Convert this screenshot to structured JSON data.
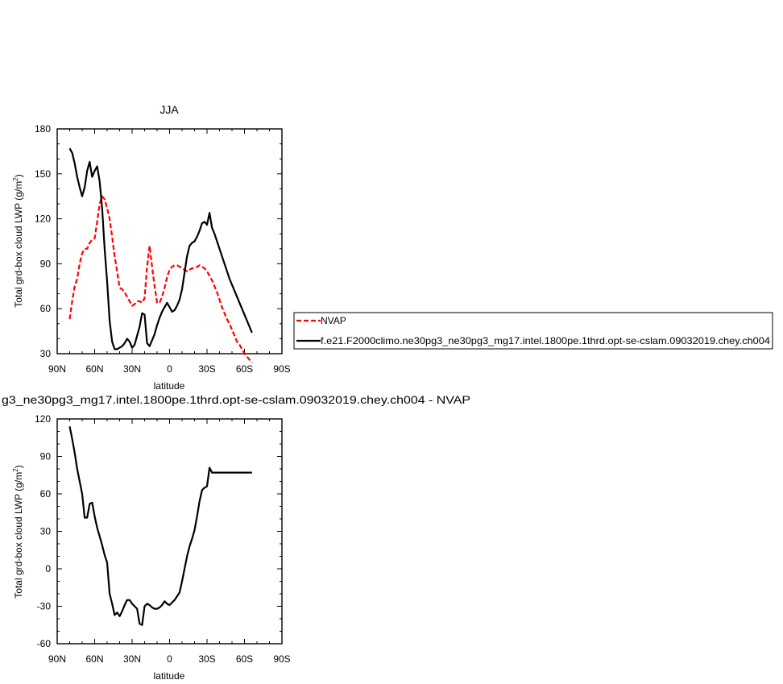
{
  "chart_data": [
    {
      "type": "line",
      "title": "JJA",
      "xlabel": "latitude",
      "ylabel_main": "Total grd-box cloud LWP (g/m",
      "ylabel_sup": "2",
      "ylabel_end": ")",
      "xlim": [
        90,
        -90
      ],
      "ylim": [
        30,
        180
      ],
      "xticks": [
        90,
        60,
        30,
        0,
        -30,
        -60,
        -90
      ],
      "xtick_labels": [
        "90N",
        "60N",
        "30N",
        "0",
        "30S",
        "60S",
        "90S"
      ],
      "yticks": [
        30,
        60,
        90,
        120,
        150,
        180
      ],
      "ytick_labels": [
        "30",
        "60",
        "90",
        "120",
        "150",
        "180"
      ],
      "legend_position": "right of plot",
      "series": [
        {
          "name": "NVAP",
          "color": "#ff0000",
          "dash": "dashed",
          "x": [
            80,
            78,
            76,
            74,
            72,
            70,
            68,
            66,
            64,
            62,
            60,
            58,
            56,
            54,
            52,
            50,
            48,
            46,
            44,
            42,
            40,
            38,
            36,
            34,
            32,
            30,
            28,
            26,
            24,
            22,
            20,
            18,
            16,
            14,
            12,
            10,
            8,
            6,
            4,
            2,
            0,
            -2,
            -4,
            -6,
            -8,
            -10,
            -12,
            -14,
            -16,
            -18,
            -20,
            -22,
            -24,
            -26,
            -28,
            -30,
            -32,
            -34,
            -36,
            -38,
            -40,
            -42,
            -44,
            -46,
            -48,
            -50,
            -52,
            -54,
            -56,
            -58,
            -60,
            -62,
            -64,
            -66
          ],
          "values": [
            53,
            65,
            75,
            80,
            90,
            97,
            100,
            100,
            104,
            106,
            107,
            118,
            130,
            135,
            133,
            127,
            120,
            108,
            95,
            85,
            74,
            73,
            71,
            68,
            65,
            62,
            63,
            65,
            65,
            64,
            67,
            88,
            102,
            88,
            75,
            64,
            64,
            68,
            74,
            81,
            86,
            88,
            89,
            89,
            88,
            87,
            86,
            85,
            86,
            87,
            87,
            88,
            89,
            88,
            87,
            85,
            82,
            79,
            75,
            71,
            66,
            61,
            57,
            53,
            50,
            46,
            42,
            38,
            36,
            33,
            30,
            28,
            26,
            24
          ]
        },
        {
          "name": "f.e21.F2000climo.ne30pg3_ne30pg3_mg17.intel.1800pe.1thrd.opt-se-cslam.09032019.chey.ch004",
          "color": "#000000",
          "dash": "solid",
          "x": [
            80,
            78,
            76,
            74,
            72,
            70,
            68,
            66,
            64,
            62,
            60,
            58,
            56,
            54,
            52,
            50,
            48,
            46,
            44,
            42,
            40,
            38,
            36,
            34,
            32,
            30,
            28,
            26,
            24,
            22,
            20,
            18,
            16,
            14,
            12,
            10,
            8,
            6,
            4,
            2,
            0,
            -2,
            -4,
            -6,
            -8,
            -10,
            -12,
            -14,
            -16,
            -18,
            -20,
            -22,
            -24,
            -26,
            -28,
            -30,
            -32,
            -34,
            -36,
            -38,
            -40,
            -42,
            -44,
            -46,
            -48,
            -50,
            -52,
            -54,
            -56,
            -58,
            -60,
            -62,
            -64,
            -66
          ],
          "values": [
            167,
            164,
            157,
            148,
            141,
            135,
            141,
            152,
            158,
            148,
            152,
            155,
            145,
            127,
            100,
            78,
            52,
            38,
            33,
            33,
            34,
            35,
            37,
            40,
            38,
            34,
            36,
            42,
            48,
            57,
            56,
            37,
            35,
            39,
            43,
            49,
            54,
            58,
            61,
            64,
            61,
            58,
            59,
            62,
            66,
            73,
            84,
            95,
            102,
            104,
            105,
            108,
            112,
            117,
            118,
            116,
            124,
            114,
            110,
            105,
            100,
            95,
            90,
            85,
            80,
            76,
            72,
            68,
            64,
            60,
            56,
            52,
            48,
            44
          ]
        }
      ]
    },
    {
      "type": "line",
      "title": "g3_ne30pg3_mg17.intel.1800pe.1thrd.opt-se-cslam.09032019.chey.ch004 - NVAP",
      "xlabel": "latitude",
      "ylabel_main": "Total grd-box cloud LWP (g/m",
      "ylabel_sup": "2",
      "ylabel_end": ")",
      "xlim": [
        90,
        -90
      ],
      "ylim": [
        -60,
        120
      ],
      "xticks": [
        90,
        60,
        30,
        0,
        -30,
        -60,
        -90
      ],
      "xtick_labels": [
        "90N",
        "60N",
        "30N",
        "0",
        "30S",
        "60S",
        "90S"
      ],
      "yticks": [
        -60,
        -30,
        0,
        30,
        60,
        90,
        120
      ],
      "ytick_labels": [
        "-60",
        "-30",
        "0",
        "30",
        "60",
        "90",
        "120"
      ],
      "series": [
        {
          "color": "#000000",
          "dash": "solid",
          "x": [
            80,
            78,
            76,
            74,
            72,
            70,
            68,
            66,
            64,
            62,
            60,
            58,
            56,
            54,
            52,
            50,
            48,
            46,
            44,
            42,
            40,
            38,
            36,
            34,
            32,
            30,
            28,
            26,
            24,
            22,
            20,
            18,
            16,
            14,
            12,
            10,
            8,
            6,
            4,
            2,
            0,
            -2,
            -4,
            -6,
            -8,
            -10,
            -12,
            -14,
            -16,
            -18,
            -20,
            -22,
            -24,
            -26,
            -28,
            -30,
            -32,
            -34,
            -36,
            -38,
            -40,
            -42,
            -44,
            -46,
            -48,
            -50,
            -52,
            -54,
            -56,
            -58,
            -60,
            -62,
            -64,
            -66
          ],
          "values": [
            114,
            104,
            93,
            80,
            70,
            60,
            41,
            41,
            52,
            53,
            42,
            33,
            26,
            19,
            11,
            5,
            -20,
            -28,
            -37,
            -35,
            -38,
            -34,
            -29,
            -25,
            -25,
            -28,
            -30,
            -32,
            -44,
            -45,
            -30,
            -28,
            -29,
            -31,
            -32,
            -32,
            -31,
            -29,
            -26,
            -28,
            -29,
            -27,
            -25,
            -22,
            -19,
            -10,
            0,
            10,
            18,
            24,
            31,
            42,
            54,
            63,
            65,
            66,
            81,
            77,
            77,
            77,
            77,
            77,
            77,
            77,
            77,
            77,
            77,
            77,
            77,
            77,
            77,
            77,
            77,
            77
          ]
        }
      ]
    }
  ]
}
